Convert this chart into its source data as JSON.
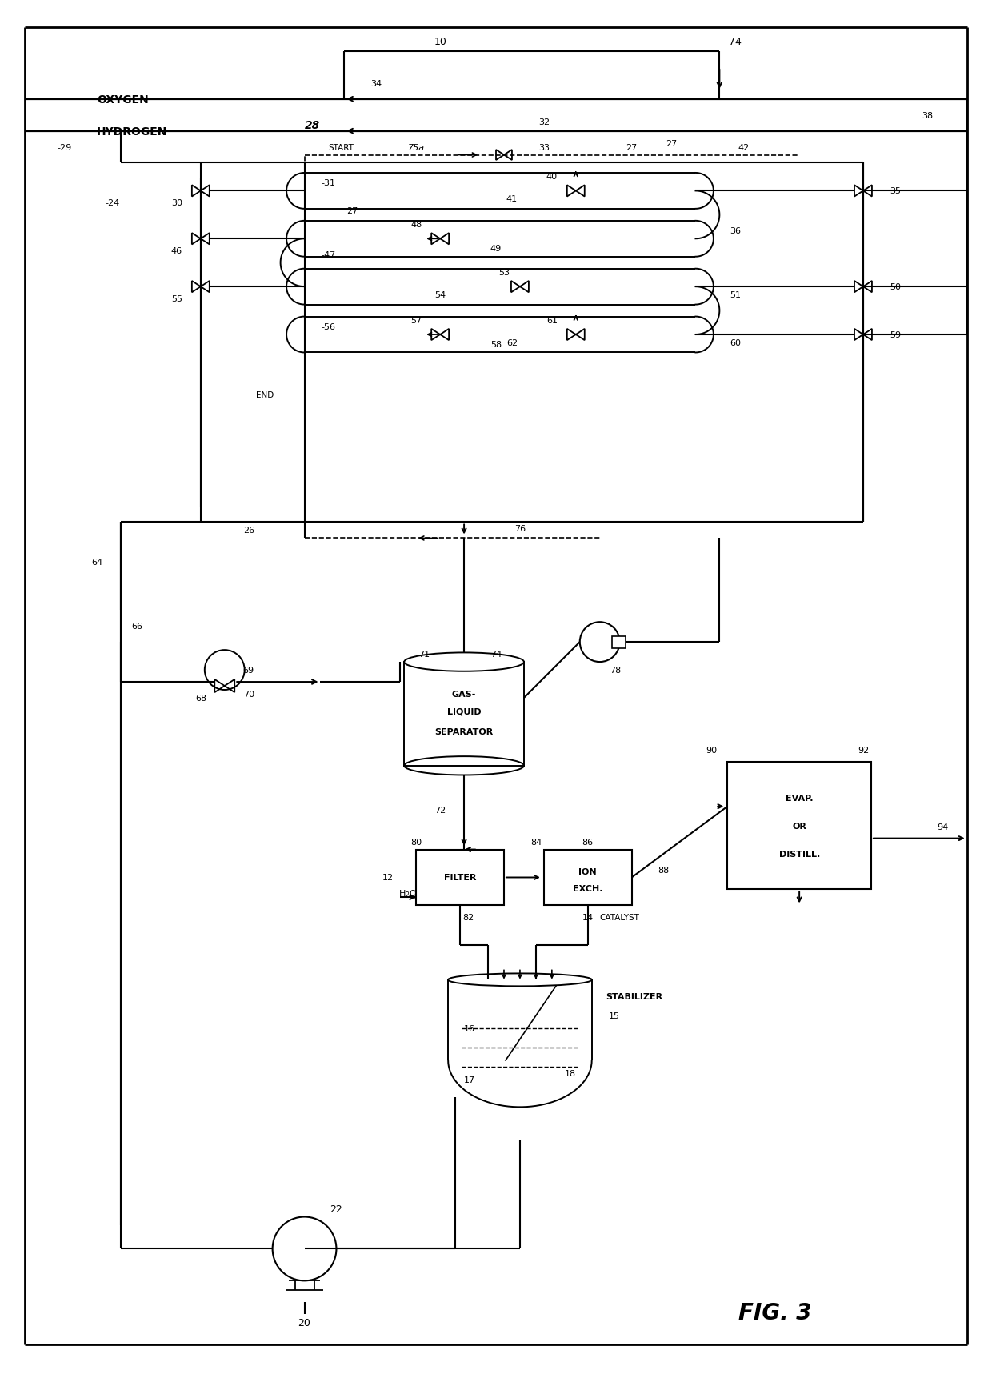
{
  "title": "FIG. 3",
  "bg_color": "white",
  "line_color": "black",
  "fig_width": 12.4,
  "fig_height": 17.33,
  "dpi": 100,
  "xlim": [
    0,
    124
  ],
  "ylim": [
    0,
    173.3
  ]
}
